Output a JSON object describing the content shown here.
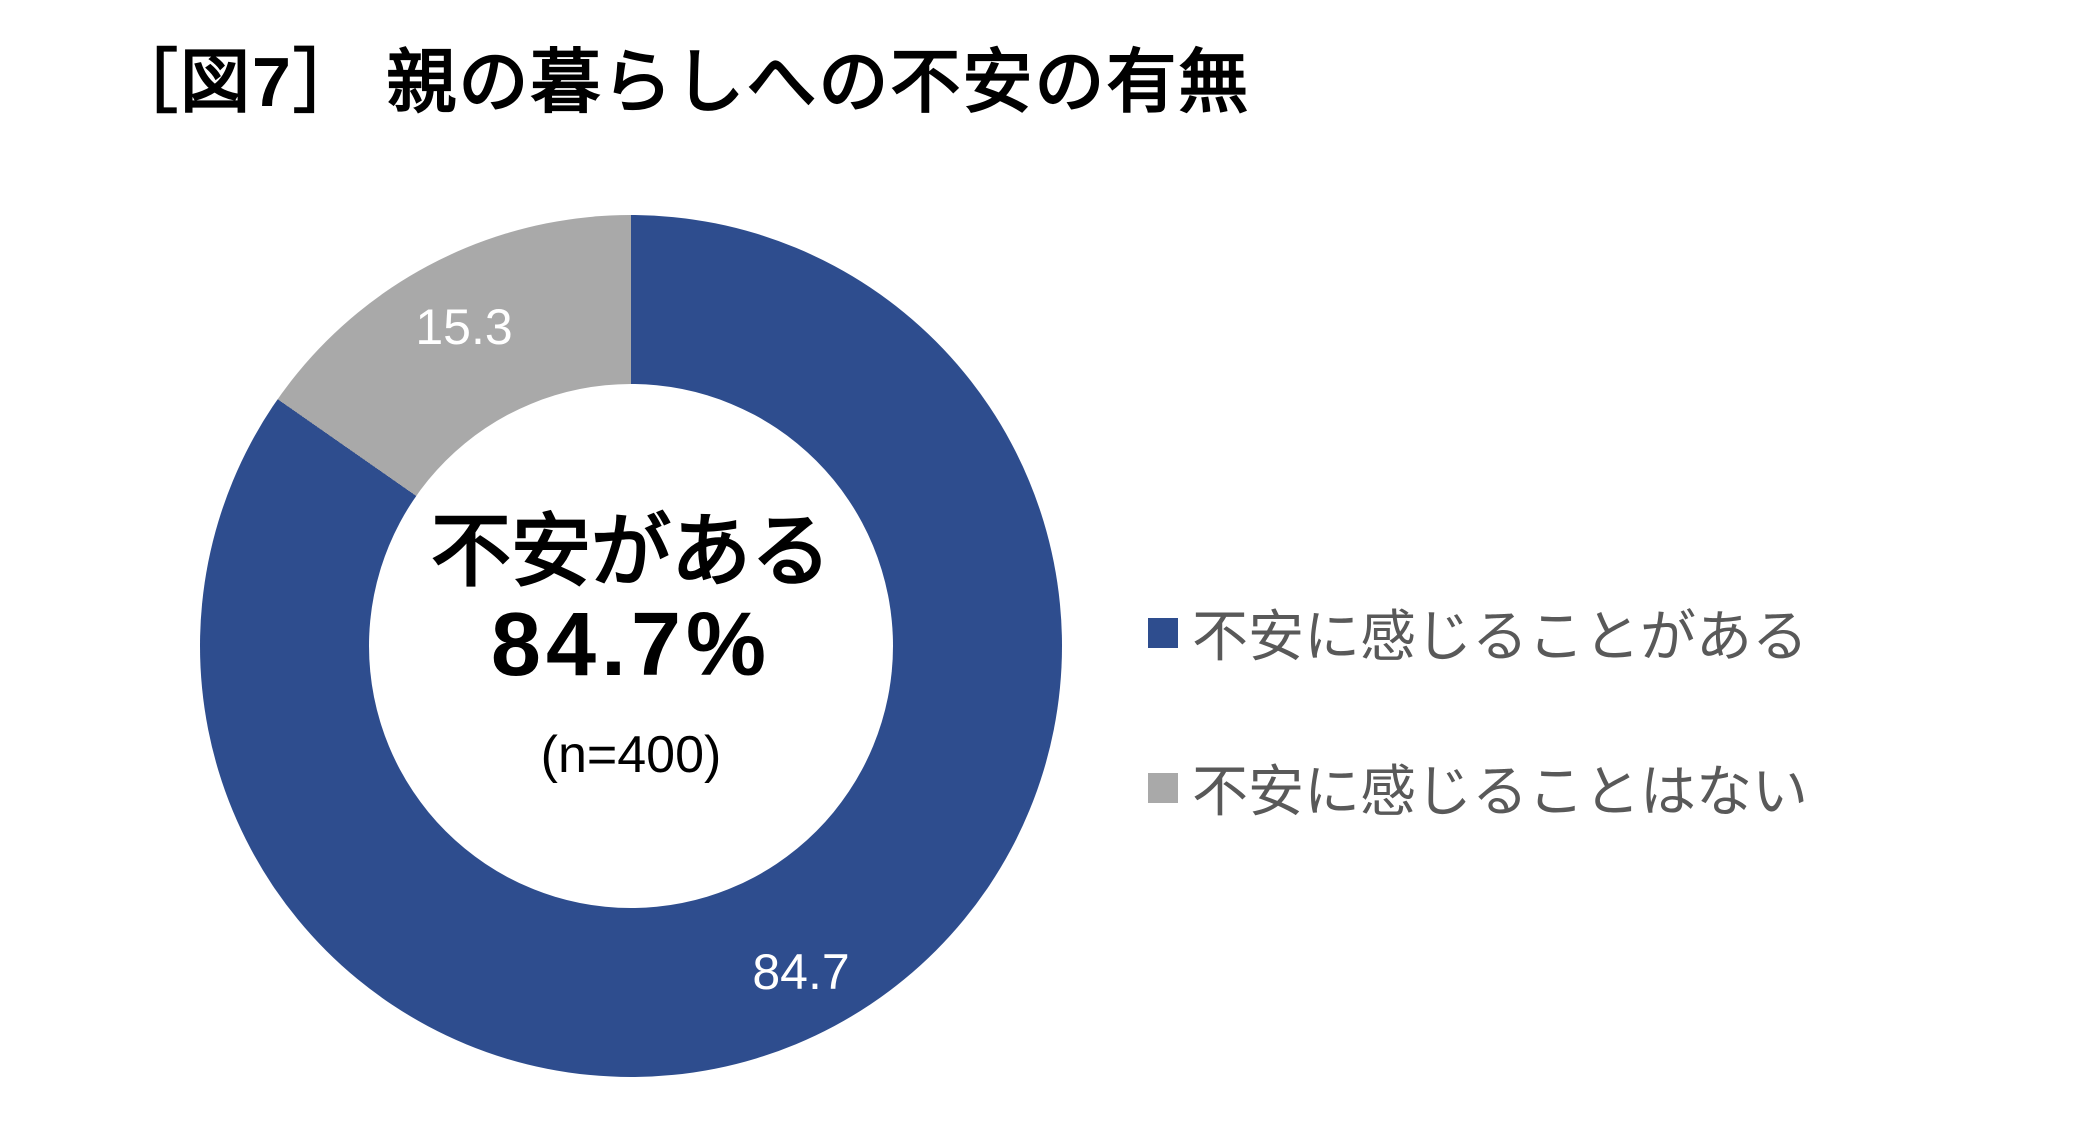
{
  "chart_data": {
    "type": "pie",
    "subtype": "donut",
    "title": "［図7］ 親の暮らしへの不安の有無",
    "categories": [
      "不安に感じることがある",
      "不安に感じることはない"
    ],
    "values": [
      84.7,
      15.3
    ],
    "colors": [
      "#2e4d8e",
      "#a9a9a9"
    ],
    "data_labels": [
      "84.7",
      "15.3"
    ],
    "center_label": {
      "line1": "不安がある",
      "line2": "84.7%",
      "line3": "(n=400)"
    },
    "legend_position": "right",
    "start_angle_deg": 0,
    "direction": "clockwise",
    "background": "#ffffff",
    "data_label_color": "#ffffff"
  },
  "legend": {
    "items": [
      {
        "label": "不安に感じることがある",
        "color": "#2e4d8e"
      },
      {
        "label": "不安に感じることはない",
        "color": "#a9a9a9"
      }
    ]
  }
}
